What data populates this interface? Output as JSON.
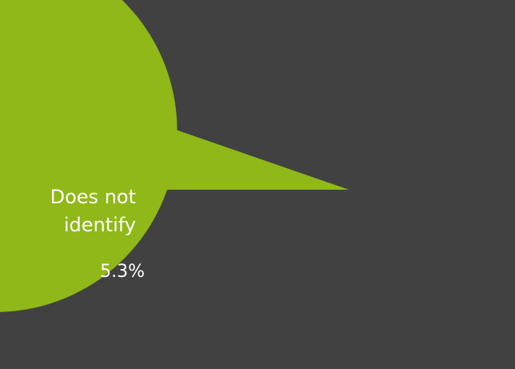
{
  "chart_data": {
    "type": "pie",
    "start_angle_deg": 180,
    "direction": "counterclockwise",
    "slices": [
      {
        "label": "Does not identify",
        "label_lines": [
          "Does not",
          "identify"
        ],
        "value_label": "5.3%",
        "value": 5.3,
        "color": "#e8e54c"
      },
      {
        "label": "",
        "label_lines": [],
        "value_label": "",
        "value": 94.7,
        "color": "#8fb818"
      }
    ]
  }
}
